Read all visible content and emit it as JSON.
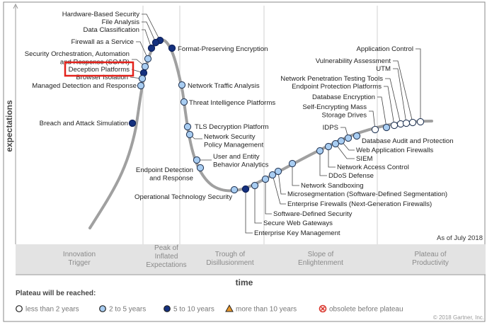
{
  "axis": {
    "y_label": "expectations",
    "x_label": "time"
  },
  "as_of": "As of July 2018",
  "phases": [
    {
      "lines": [
        "Innovation",
        "Trigger"
      ]
    },
    {
      "lines": [
        "Peak of",
        "Inflated",
        "Expectations"
      ]
    },
    {
      "lines": [
        "Trough of",
        "Disillusionment"
      ]
    },
    {
      "lines": [
        "Slope of",
        "Enlightenment"
      ]
    },
    {
      "lines": [
        "Plateau of",
        "Productivity"
      ]
    }
  ],
  "legend": {
    "title": "Plateau will be reached:",
    "items": [
      {
        "key": "lt2",
        "label": "less than 2 years",
        "shape": "circle",
        "color": "#ffffff"
      },
      {
        "key": "2to5",
        "label": "2 to 5 years",
        "shape": "circle",
        "color": "#a8cdf2"
      },
      {
        "key": "5to10",
        "label": "5 to 10 years",
        "shape": "circle",
        "color": "#14307e"
      },
      {
        "key": "gt10",
        "label": "more than 10 years",
        "shape": "triangle",
        "color": "#e8962a"
      },
      {
        "key": "obsolete",
        "label": "obsolete before plateau",
        "shape": "crossed-circle",
        "color": "#d9342b"
      }
    ]
  },
  "highlighted": "Deception Platforms",
  "highlight_color": "#e3221b",
  "copyright": "© 2018 Gartner, Inc.",
  "technologies": [
    {
      "lines": [
        "Hardware-Based Security"
      ],
      "plateau": "5to10"
    },
    {
      "lines": [
        "File Analysis"
      ],
      "plateau": "5to10"
    },
    {
      "lines": [
        "Data Classification"
      ],
      "plateau": "5to10"
    },
    {
      "lines": [
        "Firewall as a Service"
      ],
      "plateau": "2to5"
    },
    {
      "lines": [
        "Security Orchestration, Automation",
        "and Response (SOAR)"
      ],
      "plateau": "2to5"
    },
    {
      "lines": [
        "Deception Platforms"
      ],
      "plateau": "5to10"
    },
    {
      "lines": [
        "Browser Isolation"
      ],
      "plateau": "2to5"
    },
    {
      "lines": [
        "Managed Detection and Response"
      ],
      "plateau": "2to5"
    },
    {
      "lines": [
        "Breach and Attack Simulation"
      ],
      "plateau": "5to10"
    },
    {
      "lines": [
        "Format-Preserving Encryption"
      ],
      "plateau": "5to10"
    },
    {
      "lines": [
        "Network Traffic Analysis"
      ],
      "plateau": "2to5"
    },
    {
      "lines": [
        "Threat Intelligence Platforms"
      ],
      "plateau": "2to5"
    },
    {
      "lines": [
        "TLS Decryption Platform"
      ],
      "plateau": "2to5"
    },
    {
      "lines": [
        "Network Security",
        "Policy Management"
      ],
      "plateau": "2to5"
    },
    {
      "lines": [
        "User and Entity",
        "Behavior Analytics"
      ],
      "plateau": "2to5"
    },
    {
      "lines": [
        "Endpoint Detection",
        "and Response"
      ],
      "plateau": "2to5"
    },
    {
      "lines": [
        "Operational Technology Security"
      ],
      "plateau": "2to5"
    },
    {
      "lines": [
        "Enterprise Key Management"
      ],
      "plateau": "5to10"
    },
    {
      "lines": [
        "Secure Web Gateways"
      ],
      "plateau": "2to5"
    },
    {
      "lines": [
        "Software-Defined Security"
      ],
      "plateau": "2to5"
    },
    {
      "lines": [
        "Enterprise Firewalls (Next-Generation Firewalls)"
      ],
      "plateau": "2to5"
    },
    {
      "lines": [
        "Microsegmentation (Software-Defined Segmentation)"
      ],
      "plateau": "2to5"
    },
    {
      "lines": [
        "Network Sandboxing"
      ],
      "plateau": "2to5"
    },
    {
      "lines": [
        "DDoS Defense"
      ],
      "plateau": "2to5"
    },
    {
      "lines": [
        "Network Access Control"
      ],
      "plateau": "2to5"
    },
    {
      "lines": [
        "SIEM"
      ],
      "plateau": "2to5"
    },
    {
      "lines": [
        "Web Application Firewalls"
      ],
      "plateau": "2to5"
    },
    {
      "lines": [
        "IDPS"
      ],
      "plateau": "2to5"
    },
    {
      "lines": [
        "Database Audit and Protection"
      ],
      "plateau": "2to5"
    },
    {
      "lines": [
        "Self-Encrypting Mass",
        "Storage Drives"
      ],
      "plateau": "lt2"
    },
    {
      "lines": [
        "Database Encryption"
      ],
      "plateau": "2to5"
    },
    {
      "lines": [
        "Endpoint Protection Platforms"
      ],
      "plateau": "lt2"
    },
    {
      "lines": [
        "Network Penetration Testing Tools"
      ],
      "plateau": "lt2"
    },
    {
      "lines": [
        "UTM"
      ],
      "plateau": "lt2"
    },
    {
      "lines": [
        "Vulnerability Assessment"
      ],
      "plateau": "lt2"
    },
    {
      "lines": [
        "Application Control"
      ],
      "plateau": "lt2"
    }
  ]
}
